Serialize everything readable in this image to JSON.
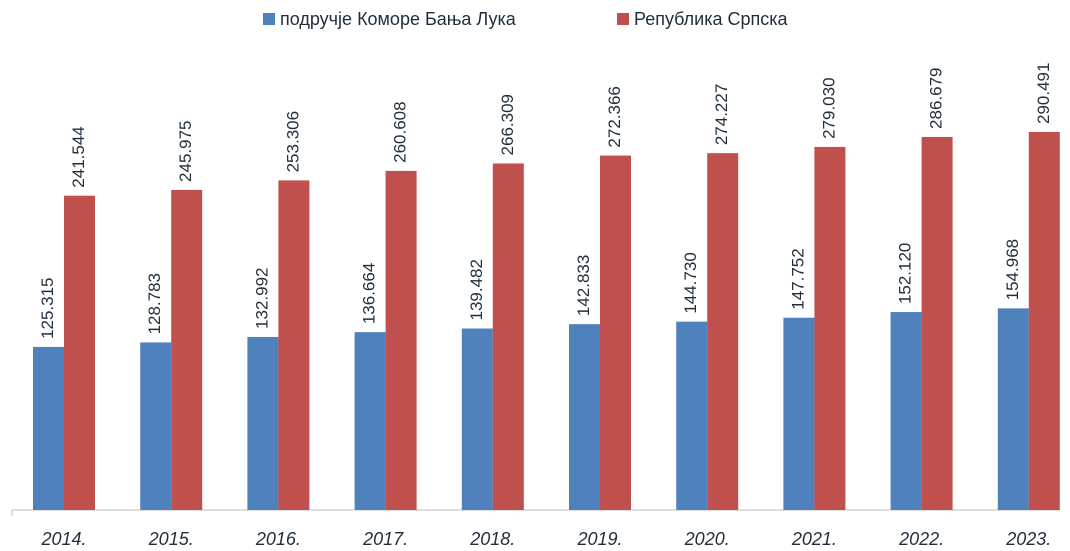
{
  "chart_data": {
    "type": "bar",
    "categories": [
      "2014.",
      "2015.",
      "2016.",
      "2017.",
      "2018.",
      "2019.",
      "2020.",
      "2021.",
      "2022.",
      "2023."
    ],
    "series": [
      {
        "name": "подручје Коморе Бања Лука",
        "color": "#4f81bd",
        "values": [
          125315,
          128783,
          132992,
          136664,
          139482,
          142833,
          144730,
          147752,
          152120,
          154968
        ],
        "value_labels": [
          "125.315",
          "128.783",
          "132.992",
          "136.664",
          "139.482",
          "142.833",
          "144.730",
          "147.752",
          "152.120",
          "154.968"
        ]
      },
      {
        "name": "Република Српска",
        "color": "#c0504d",
        "values": [
          241544,
          245975,
          253306,
          260608,
          266309,
          272366,
          274227,
          279030,
          286679,
          290491
        ],
        "value_labels": [
          "241.544",
          "245.975",
          "253.306",
          "260.608",
          "266.309",
          "272.366",
          "274.227",
          "279.030",
          "286.679",
          "290.491"
        ]
      }
    ],
    "legend": "top"
  }
}
